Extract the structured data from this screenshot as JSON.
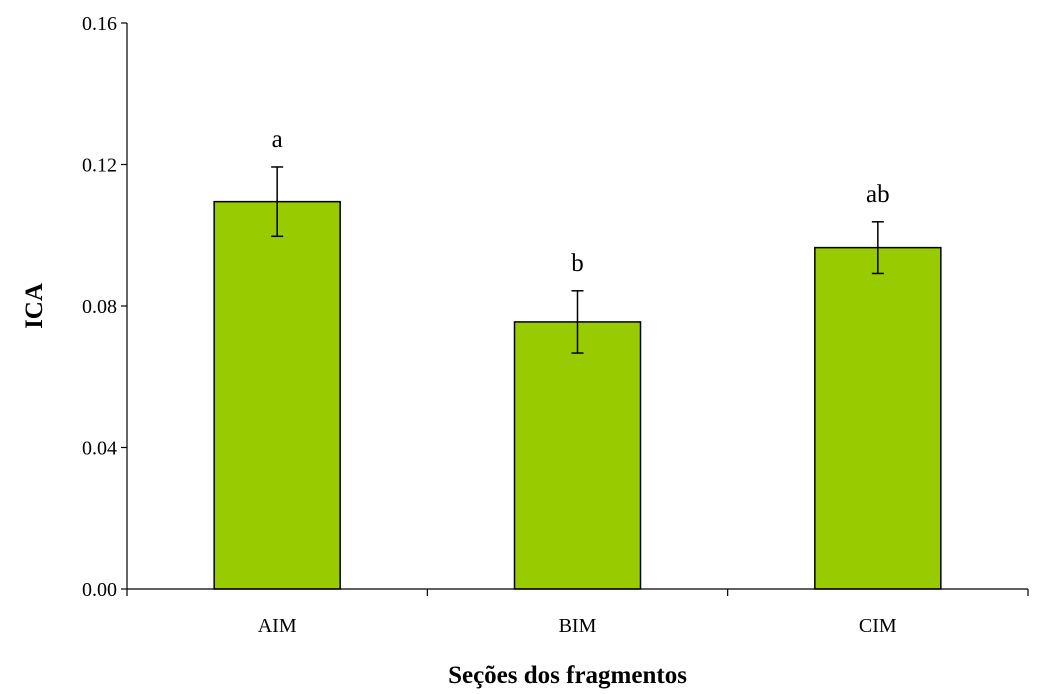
{
  "chart_data": {
    "type": "bar",
    "xlabel": "Seções dos fragmentos",
    "ylabel": "ICA",
    "categories": [
      "AIM",
      "BIM",
      "CIM"
    ],
    "values": [
      0.1095,
      0.0755,
      0.0965
    ],
    "error": [
      0.0098,
      0.0088,
      0.0073
    ],
    "annotations": [
      "a",
      "b",
      "ab"
    ],
    "ylim": [
      0,
      0.16
    ],
    "yticks": [
      0.0,
      0.04,
      0.08,
      0.12,
      0.16
    ],
    "ytick_labels": [
      "0.00",
      "0.04",
      "0.08",
      "0.12",
      "0.16"
    ],
    "grid": false,
    "bar_color": "#99cc00",
    "edge_color": "#000000"
  }
}
